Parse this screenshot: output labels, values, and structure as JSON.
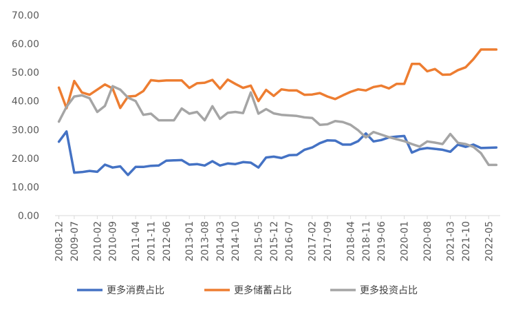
{
  "chart_data": {
    "type": "line",
    "title": "",
    "xlabel": "",
    "ylabel": "",
    "ylim": [
      0,
      70
    ],
    "yticks": [
      "0.00",
      "10.00",
      "20.00",
      "30.00",
      "40.00",
      "50.00",
      "60.00",
      "70.00"
    ],
    "x": [
      "2008-12",
      "2009-03",
      "2009-07",
      "2009-09",
      "2009-12",
      "2010-02",
      "2010-06",
      "2010-09",
      "2010-12",
      "2011-03",
      "2011-04",
      "2011-08",
      "2011-11",
      "2012-03",
      "2012-06",
      "2012-09",
      "2012-12",
      "2013-01",
      "2013-06",
      "2013-08",
      "2013-12",
      "2014-03",
      "2014-06",
      "2014-10",
      "2014-12",
      "2015-03",
      "2015-05",
      "2015-09",
      "2015-12",
      "2016-03",
      "2016-07",
      "2016-09",
      "2016-12",
      "2017-02",
      "2017-06",
      "2017-09",
      "2017-12",
      "2018-03",
      "2018-04",
      "2018-09",
      "2018-11",
      "2019-03",
      "2019-06",
      "2019-09",
      "2019-12",
      "2020-01",
      "2020-03",
      "2020-06",
      "2020-08",
      "2020-09",
      "2020-12",
      "2021-03",
      "2021-06",
      "2021-10",
      "2021-12",
      "2022-03",
      "2022-05",
      "2022-06"
    ],
    "xticks": [
      "2008-12",
      "2009-07",
      "2010-02",
      "2010-09",
      "2011-04",
      "2011-11",
      "2012-06",
      "2013-01",
      "2013-08",
      "2014-03",
      "2014-10",
      "2015-05",
      "2015-12",
      "2016-07",
      "2017-02",
      "2017-09",
      "2018-04",
      "2018-11",
      "2019-06",
      "2020-01",
      "2020-08",
      "2021-03",
      "2021-10",
      "2022-05"
    ],
    "grid": false,
    "legend_position": "bottom",
    "series": [
      {
        "name": "更多消费占比",
        "color": "#4472C4",
        "values": [
          25.8,
          29.4,
          15.0,
          15.2,
          15.6,
          15.3,
          17.8,
          16.8,
          17.2,
          14.2,
          17.0,
          17.0,
          17.4,
          17.5,
          19.2,
          19.3,
          19.4,
          17.8,
          18.0,
          17.5,
          19.0,
          17.5,
          18.2,
          18.0,
          18.7,
          18.5,
          16.8,
          20.3,
          20.6,
          20.1,
          21.1,
          21.2,
          23.0,
          23.8,
          25.3,
          26.3,
          26.2,
          24.8,
          24.8,
          26.0,
          28.7,
          25.9,
          26.4,
          27.3,
          27.6,
          27.8,
          22.0,
          23.2,
          23.6,
          23.3,
          23.0,
          22.3,
          24.8,
          24.0,
          24.8,
          23.6,
          23.7,
          23.8
        ]
      },
      {
        "name": "更多储蓄占比",
        "color": "#ED7D31",
        "values": [
          44.7,
          37.5,
          47.0,
          43.0,
          42.2,
          44.0,
          45.8,
          44.4,
          37.6,
          41.6,
          41.8,
          43.5,
          47.3,
          47.0,
          47.2,
          47.2,
          47.2,
          44.6,
          46.2,
          46.4,
          47.4,
          44.3,
          47.5,
          46.0,
          44.6,
          45.4,
          40.0,
          43.9,
          41.8,
          44.1,
          43.7,
          43.7,
          42.2,
          42.3,
          42.8,
          41.6,
          40.7,
          42.0,
          43.2,
          44.1,
          43.7,
          44.9,
          45.4,
          44.4,
          46.0,
          46.0,
          53.0,
          53.0,
          50.4,
          51.2,
          49.2,
          49.3,
          50.8,
          51.8,
          54.6,
          58.0,
          58.0,
          58.0
        ]
      },
      {
        "name": "更多投资占比",
        "color": "#A5A5A5",
        "values": [
          32.8,
          38.0,
          41.6,
          42.0,
          41.0,
          36.2,
          38.3,
          45.2,
          44.0,
          41.2,
          40.0,
          35.2,
          35.6,
          33.3,
          33.3,
          33.3,
          37.4,
          35.6,
          36.2,
          33.3,
          38.2,
          33.8,
          35.9,
          36.2,
          35.8,
          43.0,
          35.6,
          37.2,
          35.7,
          35.2,
          35.0,
          34.8,
          34.3,
          34.1,
          31.7,
          31.9,
          33.0,
          32.7,
          31.7,
          29.8,
          27.3,
          29.2,
          28.3,
          27.4,
          26.7,
          26.0,
          25.0,
          24.1,
          25.9,
          25.5,
          25.0,
          28.5,
          25.4,
          25.0,
          24.0,
          21.8,
          17.7,
          17.7
        ]
      }
    ]
  }
}
